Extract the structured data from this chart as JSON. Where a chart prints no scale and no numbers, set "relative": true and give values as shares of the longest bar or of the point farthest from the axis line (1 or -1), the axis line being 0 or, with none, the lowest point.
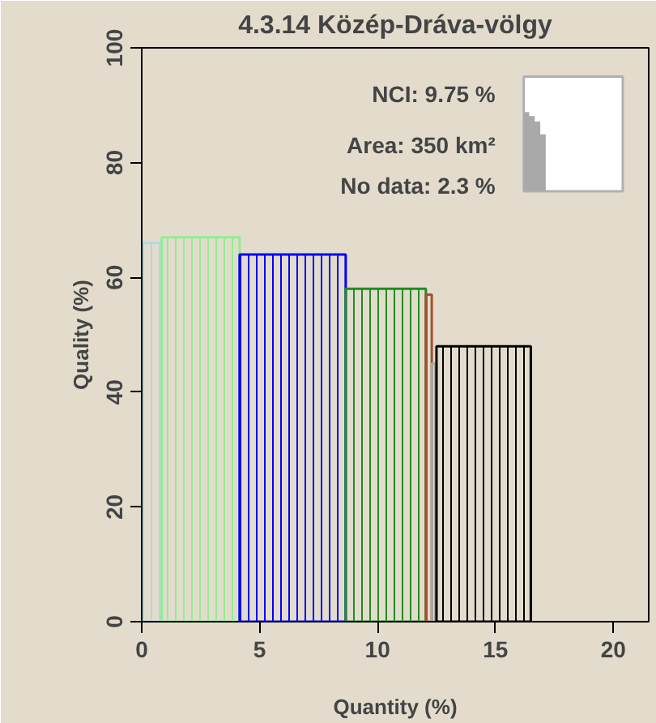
{
  "chart_data": [
    {
      "type": "histogram",
      "title": "4.3.14 Közép-Dráva-völgy",
      "xlabel": "Quantity (%)",
      "ylabel": "Quality (%)",
      "bins": [
        0,
        0.85,
        4.15,
        8.65,
        12.05,
        12.3,
        12.5,
        16.5
      ],
      "values": [
        66,
        67,
        64,
        58,
        57,
        45,
        48
      ],
      "colors": [
        "#add8e6",
        "#90ee90",
        "#0000ff",
        "#228b22",
        "#a0522d",
        "#a9a9a9",
        "#000000"
      ],
      "xlim": [
        0,
        21.5
      ],
      "ylim": [
        0,
        100
      ],
      "xticks": [
        0,
        5,
        10,
        15,
        20
      ],
      "yticks": [
        0,
        20,
        40,
        60,
        80,
        100
      ],
      "annotations": [
        "NCI: 9.75 %",
        "Area: 350 km²",
        "No data: 2.3 %"
      ]
    },
    {
      "type": "area",
      "relative": true,
      "color": "#a9a9a9",
      "categories": [
        null,
        null,
        null,
        null,
        null,
        null,
        null,
        null,
        null,
        null,
        null,
        null,
        null,
        null,
        null,
        null,
        null,
        null
      ],
      "values": [
        1,
        0.95,
        0.88,
        0.72,
        0,
        0,
        0,
        0,
        0,
        0,
        0,
        0,
        0,
        0,
        0,
        0,
        0,
        0
      ]
    }
  ]
}
